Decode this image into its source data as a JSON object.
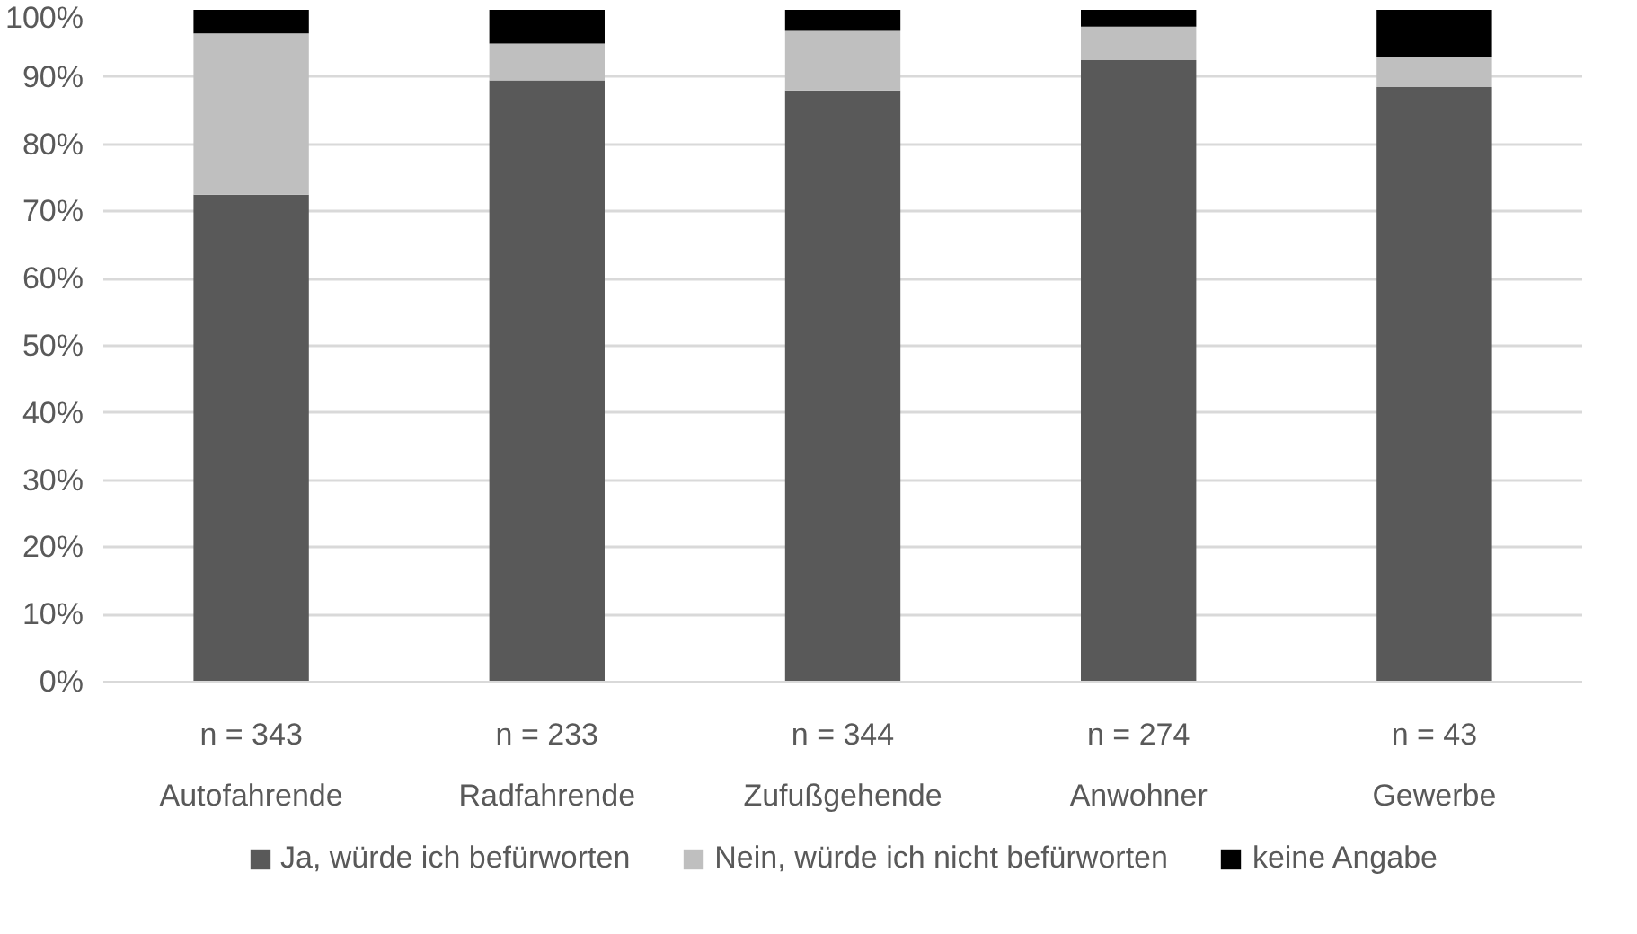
{
  "chart_data": {
    "type": "bar",
    "stacked": true,
    "categories": [
      "n = 343\nAutofahrende",
      "n = 233\nRadfahrende",
      "n = 344\nZufußgehende",
      "n = 274\nAnwohner",
      "n = 43\nGewerbe"
    ],
    "series": [
      {
        "name": "Ja, würde ich befürworten",
        "color": "#595959",
        "values": [
          72.5,
          89.5,
          88,
          92.5,
          88.5
        ]
      },
      {
        "name": "Nein, würde ich nicht befürworten",
        "color": "#bfbfbf",
        "values": [
          24,
          5.5,
          9,
          5,
          4.5
        ]
      },
      {
        "name": "keine Angabe",
        "color": "#000000",
        "values": [
          3.5,
          5,
          3,
          2.5,
          7
        ]
      }
    ],
    "ylim": [
      0,
      100
    ],
    "yticks": [
      {
        "value": 0,
        "label": "0%"
      },
      {
        "value": 10,
        "label": "10%"
      },
      {
        "value": 20,
        "label": "20%"
      },
      {
        "value": 30,
        "label": "30%"
      },
      {
        "value": 40,
        "label": "40%"
      },
      {
        "value": 50,
        "label": "50%"
      },
      {
        "value": 60,
        "label": "60%"
      },
      {
        "value": 70,
        "label": "70%"
      },
      {
        "value": 80,
        "label": "80%"
      },
      {
        "value": 90,
        "label": "90%"
      },
      {
        "value": 100,
        "label": "100%"
      }
    ],
    "grid": "y",
    "legend": "bottom"
  }
}
